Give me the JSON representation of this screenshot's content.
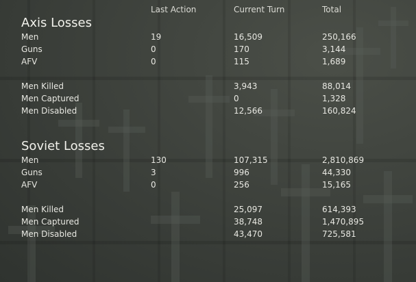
{
  "headers": {
    "last_action": "Last Action",
    "current_turn": "Current Turn",
    "total": "Total"
  },
  "axis": {
    "title": "Axis Losses",
    "rows": [
      {
        "label": "Men",
        "last": "19",
        "current": "16,509",
        "total": "250,166"
      },
      {
        "label": "Guns",
        "last": "0",
        "current": "170",
        "total": "3,144"
      },
      {
        "label": "AFV",
        "last": "0",
        "current": "115",
        "total": "1,689"
      },
      {
        "label": "Men Killed",
        "last": "",
        "current": "3,943",
        "total": "88,014"
      },
      {
        "label": "Men Captured",
        "last": "",
        "current": "0",
        "total": "1,328"
      },
      {
        "label": "Men Disabled",
        "last": "",
        "current": "12,566",
        "total": "160,824"
      }
    ]
  },
  "soviet": {
    "title": "Soviet Losses",
    "rows": [
      {
        "label": "Men",
        "last": "130",
        "current": "107,315",
        "total": "2,810,869"
      },
      {
        "label": "Guns",
        "last": "3",
        "current": "996",
        "total": "44,330"
      },
      {
        "label": "AFV",
        "last": "0",
        "current": "256",
        "total": "15,165"
      },
      {
        "label": "Men Killed",
        "last": "",
        "current": "25,097",
        "total": "614,393"
      },
      {
        "label": "Men Captured",
        "last": "",
        "current": "38,748",
        "total": "1,470,895"
      },
      {
        "label": "Men Disabled",
        "last": "",
        "current": "43,470",
        "total": "725,581"
      }
    ]
  }
}
